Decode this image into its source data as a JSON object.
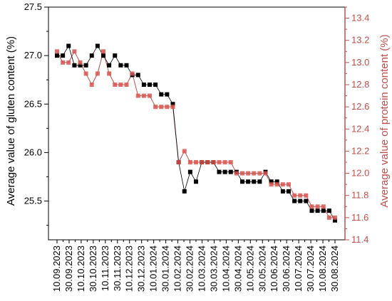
{
  "chart_data": {
    "type": "scatter",
    "xlabel": "",
    "ylabel_left": "Average value of gluten content (%)",
    "ylabel_right": "Average value of protein content (%)",
    "ylim_left": [
      25.1,
      27.5
    ],
    "ylim_right": [
      11.4,
      13.5
    ],
    "yticks_left": [
      "25.5",
      "26.0",
      "26.5",
      "27.0",
      "27.5"
    ],
    "yticks_right": [
      "11.4",
      "11.6",
      "11.8",
      "12.0",
      "12.2",
      "12.4",
      "12.6",
      "12.8",
      "13.0",
      "13.2",
      "13.4"
    ],
    "x_tick_labels": [
      "10.09.2023",
      "30.09.2023",
      "10.10.2023",
      "30.10.2023",
      "10.11.2023",
      "30.11.2023",
      "10.12.2023",
      "30.12.2023",
      "10.01.2024",
      "30.01.2024",
      "10.02.2024",
      "30.02.2024",
      "10.03.2024",
      "30.03.2024",
      "10.04.2024",
      "30.04.2024",
      "10.05.2024",
      "30.05.2024",
      "10.06.2024",
      "30.06.2024",
      "10.07.2024",
      "30.07.2024",
      "10.08.2024",
      "30.08.2024"
    ],
    "grid": false,
    "colors": {
      "gluten": "#000000",
      "protein": "#d9534f",
      "protein_line": "#c0504d",
      "right_axis": "#c0504d"
    },
    "series": [
      {
        "axis": "left",
        "values": [
          27.0,
          27.0,
          27.1,
          26.9,
          26.9,
          26.9,
          27.0,
          27.1,
          27.0,
          26.9,
          27.0,
          26.9,
          26.9,
          26.8,
          26.8,
          26.7,
          26.7,
          26.7,
          26.6,
          26.6,
          26.5,
          25.9,
          25.6,
          25.8,
          25.7,
          25.9,
          25.9,
          25.9,
          25.8,
          25.8,
          25.8,
          25.8,
          25.7,
          25.7,
          25.7,
          25.7,
          25.8,
          25.7,
          25.7,
          25.6,
          25.6,
          25.5,
          25.5,
          25.5,
          25.4,
          25.4,
          25.4,
          25.4,
          25.3
        ]
      },
      {
        "axis": "right",
        "values": [
          13.1,
          13.0,
          13.0,
          13.1,
          13.0,
          12.9,
          12.8,
          12.9,
          13.1,
          12.9,
          12.8,
          12.8,
          12.8,
          12.9,
          12.7,
          12.7,
          12.7,
          12.6,
          12.6,
          12.6,
          12.6,
          12.1,
          12.2,
          12.1,
          12.1,
          12.1,
          12.1,
          12.1,
          12.1,
          12.1,
          12.1,
          12.0,
          12.0,
          12.0,
          12.0,
          12.0,
          12.0,
          11.9,
          11.9,
          11.9,
          11.9,
          11.8,
          11.8,
          11.8,
          11.7,
          11.7,
          11.7,
          11.6,
          11.6
        ]
      }
    ]
  }
}
